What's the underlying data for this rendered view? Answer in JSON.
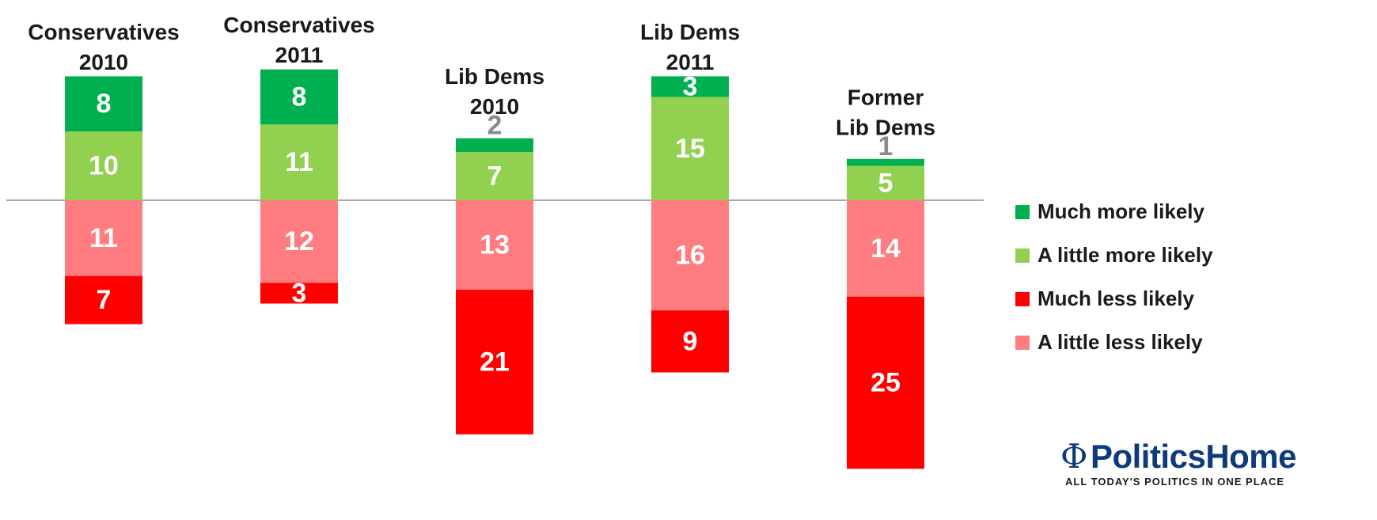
{
  "chart_data": {
    "type": "bar",
    "stacked": true,
    "diverging": true,
    "categories": [
      [
        "Conservatives",
        "2010"
      ],
      [
        "Conservatives",
        "2011"
      ],
      [
        "Lib Dems",
        "2010"
      ],
      [
        "Lib Dems",
        "2011"
      ],
      [
        "Former",
        "Lib Dems"
      ]
    ],
    "series": [
      {
        "name": "Much more likely",
        "color": "#00b050",
        "direction": "positive",
        "values": [
          8,
          8,
          2,
          3,
          1
        ]
      },
      {
        "name": "A little more likely",
        "color": "#92d050",
        "direction": "positive",
        "values": [
          10,
          11,
          7,
          15,
          5
        ]
      },
      {
        "name": "A little less likely",
        "color": "#ff7c80",
        "direction": "negative",
        "values": [
          11,
          12,
          13,
          16,
          14
        ]
      },
      {
        "name": "Much less likely",
        "color": "#ff0000",
        "direction": "negative",
        "values": [
          7,
          3,
          21,
          9,
          25
        ]
      }
    ],
    "legend_order": [
      "Much more likely",
      "A little more likely",
      "Much less likely",
      "A little less likely"
    ],
    "legend_position": "right",
    "grid": false
  },
  "branding": {
    "logo_name": "PoliticsHome",
    "logo_symbol": "Φ",
    "logo_tagline": "ALL TODAY'S POLITICS IN ONE PLACE"
  }
}
